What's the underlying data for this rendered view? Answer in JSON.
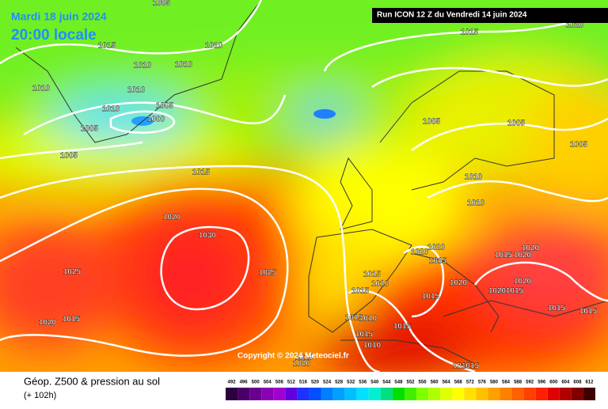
{
  "header": {
    "date": "Mardi 18 juin 2024",
    "time": "20:00 locale",
    "run": "Run ICON 12 Z du Vendredi 14 juin 2024"
  },
  "isobar_labels": [
    "1005",
    "1015",
    "1010",
    "1010",
    "1010",
    "1010",
    "1010",
    "1010",
    "1005",
    "1000",
    "1005",
    "1005",
    "1015",
    "1020",
    "1005",
    "1005",
    "1005",
    "1015",
    "1010",
    "1010",
    "1020",
    "1030",
    "1025",
    "1025",
    "1015",
    "1020",
    "1020",
    "1020",
    "1015",
    "1015",
    "1010",
    "1015",
    "1015",
    "1020",
    "1015",
    "1020",
    "1020",
    "1020",
    "1020",
    "1015",
    "1015",
    "1015",
    "1015",
    "1010",
    "1015",
    "1015",
    "1010",
    "1015",
    "1020",
    "1010",
    "1015"
  ],
  "copyright": "Copyright © 2024 Meteociel.fr",
  "footer": {
    "title": "Géop. Z500 & pression au sol",
    "lead": "(+ 102h)"
  },
  "legend": {
    "values": [
      492,
      496,
      500,
      504,
      508,
      512,
      516,
      520,
      524,
      528,
      532,
      536,
      540,
      544,
      548,
      552,
      556,
      560,
      564,
      568,
      572,
      576,
      580,
      584,
      588,
      592,
      596,
      600,
      604,
      608,
      612
    ],
    "colors": [
      "#2d0040",
      "#4b0069",
      "#6a0090",
      "#8b00b4",
      "#a000d0",
      "#6000e0",
      "#2030ff",
      "#0050ff",
      "#0080ff",
      "#00a0ff",
      "#00c0ff",
      "#00e0ff",
      "#00f0d0",
      "#00e080",
      "#00e000",
      "#40f000",
      "#80ff00",
      "#b0ff00",
      "#e0ff00",
      "#ffff00",
      "#ffe000",
      "#ffc000",
      "#ffa000",
      "#ff8000",
      "#ff6000",
      "#ff4000",
      "#ff2000",
      "#e00000",
      "#b00000",
      "#800000",
      "#400000"
    ]
  }
}
